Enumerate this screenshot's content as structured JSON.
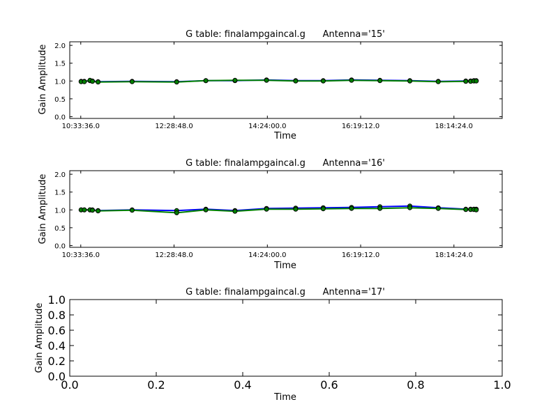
{
  "colors": {
    "series1": "#0000ff",
    "series2": "#008000",
    "marker_fill": "#008000",
    "marker_edge": "#000000"
  },
  "chart_data": [
    {
      "type": "line",
      "title": "G table: finalampgaincal.g      Antenna='15'",
      "xlabel": "Time",
      "ylabel": "Gain Amplitude",
      "xlim": [
        "10:20:00",
        "19:14:00"
      ],
      "ylim": [
        -0.05,
        2.1
      ],
      "xticks": [
        "10:33:36.0",
        "12:28:48.0",
        "14:24:00.0",
        "16:19:12.0",
        "18:14:24.0"
      ],
      "yticks": [
        "0.0",
        "0.5",
        "1.0",
        "1.5",
        "2.0"
      ],
      "grid": false,
      "x": [
        "10:34:00",
        "10:38:00",
        "10:45:00",
        "10:48:00",
        "10:55:00",
        "11:37:00",
        "12:32:00",
        "13:08:00",
        "13:44:00",
        "14:23:00",
        "14:59:00",
        "15:33:00",
        "16:08:00",
        "16:43:00",
        "17:20:00",
        "17:55:00",
        "18:29:00",
        "18:35:00",
        "18:39:00",
        "18:42:00"
      ],
      "series": [
        {
          "values": [
            0.99,
            0.99,
            1.01,
            1.0,
            0.98,
            0.99,
            0.98,
            1.01,
            1.01,
            1.03,
            1.01,
            1.01,
            1.03,
            1.02,
            1.01,
            0.99,
            1.0,
            1.0,
            1.01,
            1.01
          ]
        },
        {
          "values": [
            0.98,
            0.98,
            1.02,
            0.99,
            0.97,
            0.98,
            0.97,
            1.01,
            1.02,
            1.02,
            1.0,
            1.0,
            1.02,
            1.01,
            1.0,
            0.98,
            0.99,
            0.99,
            1.0,
            1.0
          ]
        }
      ]
    },
    {
      "type": "line",
      "title": "G table: finalampgaincal.g      Antenna='16'",
      "xlabel": "Time",
      "ylabel": "Gain Amplitude",
      "xlim": [
        "10:20:00",
        "19:14:00"
      ],
      "ylim": [
        -0.05,
        2.1
      ],
      "xticks": [
        "10:33:36.0",
        "12:28:48.0",
        "14:24:00.0",
        "16:19:12.0",
        "18:14:24.0"
      ],
      "yticks": [
        "0.0",
        "0.5",
        "1.0",
        "1.5",
        "2.0"
      ],
      "grid": false,
      "x": [
        "10:34:00",
        "10:38:00",
        "10:45:00",
        "10:48:00",
        "10:55:00",
        "11:37:00",
        "12:32:00",
        "13:08:00",
        "13:44:00",
        "14:23:00",
        "14:59:00",
        "15:33:00",
        "16:08:00",
        "16:43:00",
        "17:20:00",
        "17:55:00",
        "18:29:00",
        "18:35:00",
        "18:39:00",
        "18:42:00"
      ],
      "series": [
        {
          "values": [
            1.0,
            1.0,
            1.0,
            1.0,
            0.98,
            1.0,
            0.98,
            1.02,
            0.98,
            1.04,
            1.05,
            1.06,
            1.07,
            1.09,
            1.11,
            1.06,
            1.02,
            1.02,
            1.02,
            1.02
          ]
        },
        {
          "values": [
            1.0,
            1.0,
            1.0,
            0.99,
            0.97,
            0.99,
            0.92,
            1.0,
            0.96,
            1.02,
            1.02,
            1.03,
            1.04,
            1.04,
            1.06,
            1.04,
            1.01,
            1.01,
            1.01,
            1.0
          ]
        }
      ]
    },
    {
      "type": "line",
      "title": "G table: finalampgaincal.g      Antenna='17'",
      "xlabel": "Time",
      "ylabel": "Gain Amplitude",
      "xlim": [
        0.0,
        1.0
      ],
      "ylim": [
        0.0,
        1.0
      ],
      "xticks": [
        "0.0",
        "0.2",
        "0.4",
        "0.6",
        "0.8",
        "1.0"
      ],
      "yticks": [
        "0.0",
        "0.2",
        "0.4",
        "0.6",
        "0.8",
        "1.0"
      ],
      "grid": false,
      "x": [],
      "series": []
    }
  ]
}
